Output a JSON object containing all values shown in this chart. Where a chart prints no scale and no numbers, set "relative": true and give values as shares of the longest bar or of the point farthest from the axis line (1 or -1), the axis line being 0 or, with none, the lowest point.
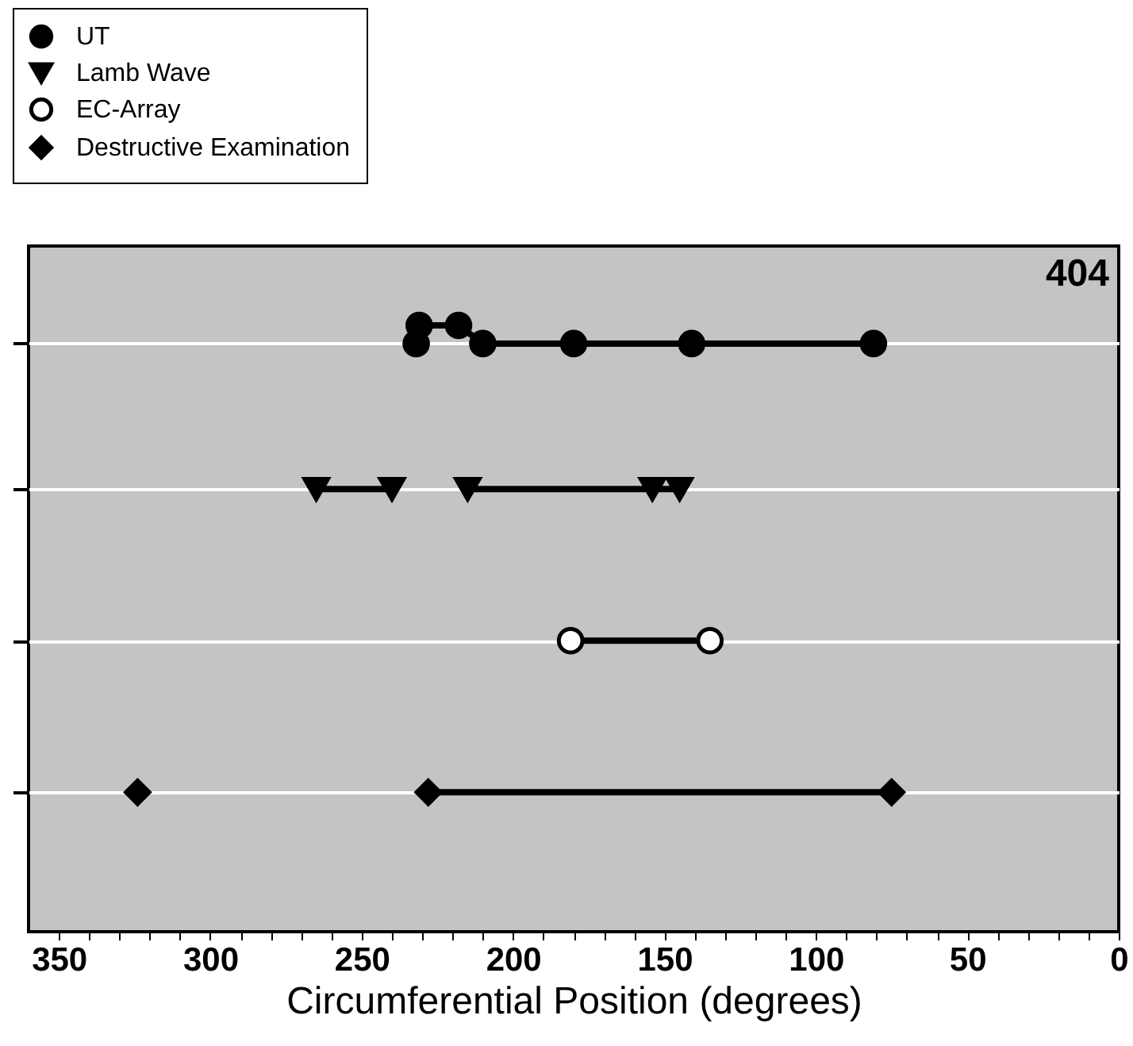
{
  "chart_data": {
    "type": "line",
    "xlabel": "Circumferential Position (degrees)",
    "annotations": [
      "404"
    ],
    "relative": true,
    "xlim": [
      360,
      0
    ],
    "xticks": [
      350,
      {
        "value": 340,
        "label": null
      },
      {
        "value": 330,
        "label": null
      },
      {
        "value": 320,
        "label": null
      },
      {
        "value": 310,
        "label": null
      },
      300,
      {
        "value": 290,
        "label": null
      },
      {
        "value": 280,
        "label": null
      },
      {
        "value": 270,
        "label": null
      },
      {
        "value": 260,
        "label": null
      },
      250,
      {
        "value": 240,
        "label": null
      },
      {
        "value": 230,
        "label": null
      },
      {
        "value": 220,
        "label": null
      },
      {
        "value": 210,
        "label": null
      },
      200,
      {
        "value": 190,
        "label": null
      },
      {
        "value": 180,
        "label": null
      },
      {
        "value": 170,
        "label": null
      },
      {
        "value": 160,
        "label": null
      },
      150,
      {
        "value": 140,
        "label": null
      },
      {
        "value": 130,
        "label": null
      },
      {
        "value": 120,
        "label": null
      },
      {
        "value": 110,
        "label": null
      },
      100,
      {
        "value": 90,
        "label": null
      },
      {
        "value": 80,
        "label": null
      },
      {
        "value": 70,
        "label": null
      },
      {
        "value": 60,
        "label": null
      },
      50,
      {
        "value": 40,
        "label": null
      },
      {
        "value": 30,
        "label": null
      },
      {
        "value": 20,
        "label": null
      },
      {
        "value": 10,
        "label": null
      },
      0
    ],
    "grid": "y",
    "legend": "top left",
    "tick_labels": "x",
    "line_style": "solid",
    "series": [
      {
        "name": "UT",
        "marker": "circle",
        "color": "#000000",
        "x": [
          232,
          231,
          218,
          210,
          180,
          141,
          81
        ],
        "values": [
          0.97,
          1,
          1,
          0.97,
          0.97,
          0.97,
          0.97
        ]
      },
      {
        "name": "Lamb Wave",
        "marker": "triangle",
        "color": "#000000",
        "x": [
          265,
          240,
          null,
          215,
          154,
          145
        ],
        "values": [
          0.73,
          0.73,
          null,
          0.73,
          0.73,
          0.73
        ]
      },
      {
        "name": "EC-Array",
        "marker": "circle",
        "color": "#ffffff",
        "x": [
          181,
          135
        ],
        "values": [
          0.48,
          0.48
        ]
      },
      {
        "name": "Destructive Examination",
        "marker": "diamond",
        "color": "#000000",
        "x": [
          324,
          null,
          228,
          75
        ],
        "values": [
          0.23,
          null,
          0.23,
          0.23
        ]
      }
    ]
  }
}
